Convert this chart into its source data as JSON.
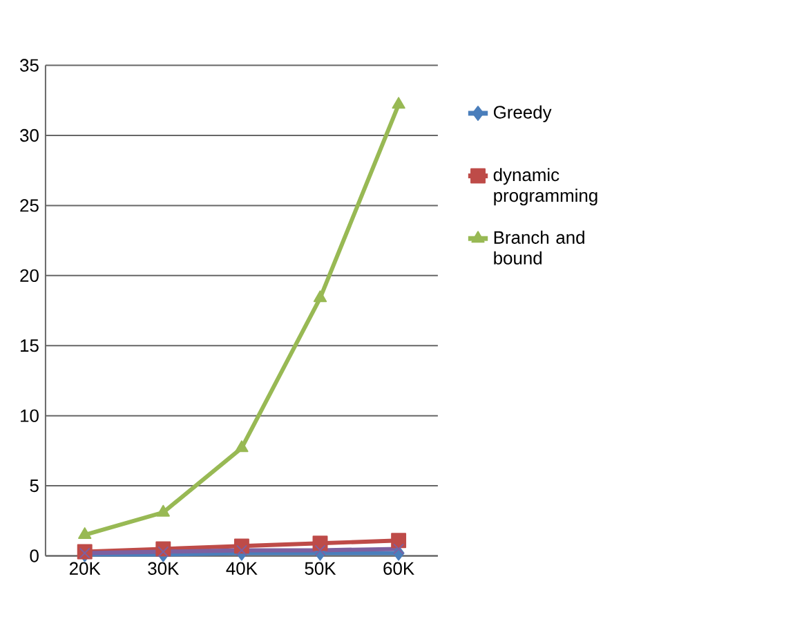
{
  "chart_data": {
    "type": "line",
    "categories": [
      "20K",
      "30K",
      "40K",
      "50K",
      "60K"
    ],
    "series": [
      {
        "name": "Greedy",
        "color": "#4a7ebb",
        "marker": "diamond",
        "values": [
          0.1,
          0.1,
          0.2,
          0.2,
          0.2
        ]
      },
      {
        "name": "dynamic programming",
        "color": "#be4b48",
        "marker": "square",
        "values": [
          0.3,
          0.5,
          0.7,
          0.9,
          1.1
        ]
      },
      {
        "name": "Branch and bound",
        "color": "#98b954",
        "marker": "triangle",
        "values": [
          1.5,
          3.1,
          7.7,
          18.4,
          32.2
        ]
      },
      {
        "color": "#7d60a0",
        "marker": "cross",
        "values": [
          0.2,
          0.3,
          0.4,
          0.4,
          0.5
        ]
      }
    ],
    "ylim": [
      0,
      35
    ],
    "yticks": [
      0,
      5,
      10,
      15,
      20,
      25,
      30,
      35
    ],
    "grid": "y",
    "legend": "right"
  }
}
